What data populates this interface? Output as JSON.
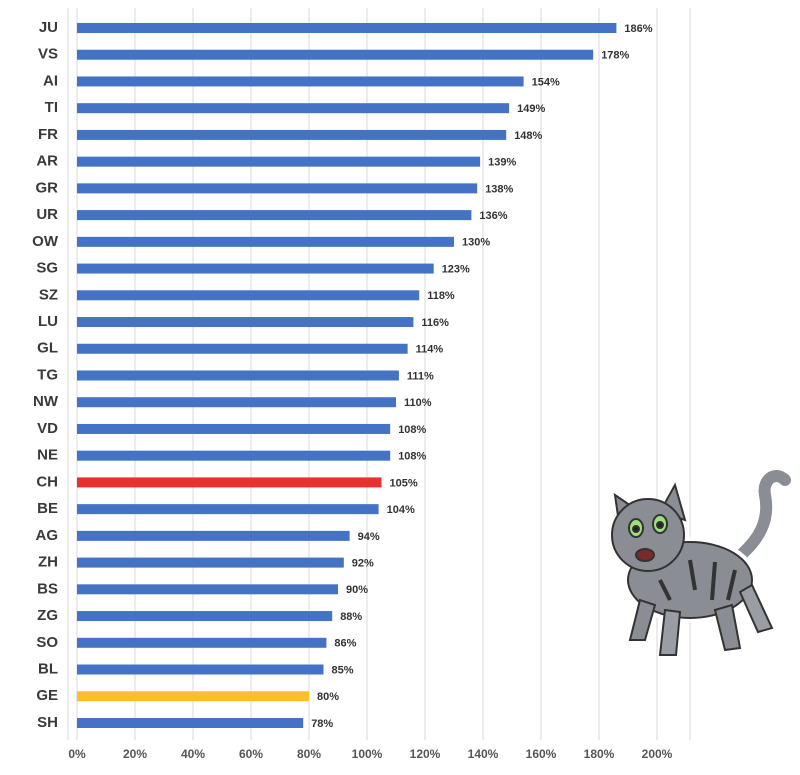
{
  "chart_data": {
    "type": "hbar",
    "categories": [
      "JU",
      "VS",
      "AI",
      "TI",
      "FR",
      "AR",
      "GR",
      "UR",
      "OW",
      "SG",
      "SZ",
      "LU",
      "GL",
      "TG",
      "NW",
      "VD",
      "NE",
      "CH",
      "BE",
      "AG",
      "ZH",
      "BS",
      "ZG",
      "SO",
      "BL",
      "GE",
      "SH"
    ],
    "values": [
      186,
      178,
      154,
      149,
      148,
      139,
      138,
      136,
      130,
      123,
      118,
      116,
      114,
      111,
      110,
      108,
      108,
      105,
      104,
      94,
      92,
      90,
      88,
      86,
      85,
      80,
      78
    ],
    "value_labels": [
      "186%",
      "178%",
      "154%",
      "149%",
      "148%",
      "139%",
      "138%",
      "136%",
      "130%",
      "123%",
      "118%",
      "116%",
      "114%",
      "111%",
      "110%",
      "108%",
      "108%",
      "105%",
      "104%",
      "94%",
      "92%",
      "90%",
      "88%",
      "86%",
      "85%",
      "80%",
      "78%"
    ],
    "colors": [
      "#4472c4",
      "#4472c4",
      "#4472c4",
      "#4472c4",
      "#4472c4",
      "#4472c4",
      "#4472c4",
      "#4472c4",
      "#4472c4",
      "#4472c4",
      "#4472c4",
      "#4472c4",
      "#4472c4",
      "#4472c4",
      "#4472c4",
      "#4472c4",
      "#4472c4",
      "#e8302e",
      "#4472c4",
      "#4472c4",
      "#4472c4",
      "#4472c4",
      "#4472c4",
      "#4472c4",
      "#4472c4",
      "#fbbf2b",
      "#4472c4"
    ],
    "xlim": [
      0,
      200
    ],
    "xticks": [
      {
        "value": 0,
        "label": "0%"
      },
      {
        "value": 20,
        "label": "20%"
      },
      {
        "value": 40,
        "label": "40%"
      },
      {
        "value": 60,
        "label": "60%"
      },
      {
        "value": 80,
        "label": "80%"
      },
      {
        "value": 100,
        "label": "100%"
      },
      {
        "value": 120,
        "label": "120%"
      },
      {
        "value": 140,
        "label": "140%"
      },
      {
        "value": 160,
        "label": "160%"
      },
      {
        "value": 180,
        "label": "180%"
      },
      {
        "value": 200,
        "label": "200%"
      }
    ],
    "grid": true
  }
}
